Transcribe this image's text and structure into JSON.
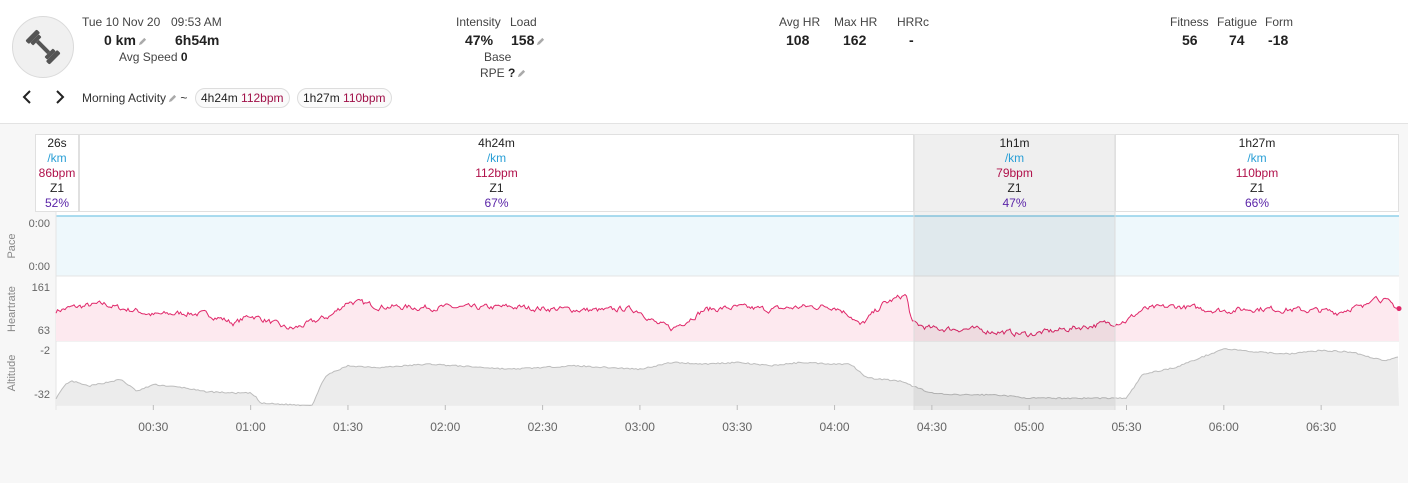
{
  "activity": {
    "date": "Tue 10 Nov 20",
    "time": "09:53 AM",
    "distance": "0 km",
    "duration": "6h54m",
    "avg_speed_label": "Avg Speed",
    "avg_speed": "0",
    "name": "Morning Activity",
    "separator": "~",
    "icon": "dumbbell-icon"
  },
  "metrics": {
    "intensity_label": "Intensity",
    "intensity": "47%",
    "load_label": "Load",
    "load": "158",
    "base_label": "Base",
    "rpe_label": "RPE",
    "rpe": "?",
    "avg_hr_label": "Avg HR",
    "avg_hr": "108",
    "max_hr_label": "Max HR",
    "max_hr": "162",
    "hrrc_label": "HRRc",
    "hrrc": "-",
    "fitness_label": "Fitness",
    "fitness": "56",
    "fatigue_label": "Fatigue",
    "fatigue": "74",
    "form_label": "Form",
    "form": "-18"
  },
  "intervals_pills": [
    {
      "duration": "4h24m",
      "bpm": "112bpm"
    },
    {
      "duration": "1h27m",
      "bpm": "110bpm"
    }
  ],
  "intervals": [
    {
      "duration": "26s",
      "pace": "/km",
      "hr": "86bpm",
      "zone": "Z1",
      "pct": "52%"
    },
    {
      "duration": "4h24m",
      "pace": "/km",
      "hr": "112bpm",
      "zone": "Z1",
      "pct": "67%"
    },
    {
      "duration": "1h1m",
      "pace": "/km",
      "hr": "79bpm",
      "zone": "Z1",
      "pct": "47%"
    },
    {
      "duration": "1h27m",
      "pace": "/km",
      "hr": "110bpm",
      "zone": "Z1",
      "pct": "66%"
    }
  ],
  "colors": {
    "pace": "#8fd0ea",
    "heartrate": "#e0286a",
    "altitude": "#bdbdbd",
    "pct": "#5a24a8"
  },
  "chart_data": {
    "type": "line",
    "x_tick_labels": [
      "00:30",
      "01:00",
      "01:30",
      "02:00",
      "02:30",
      "03:00",
      "03:30",
      "04:00",
      "04:30",
      "05:00",
      "05:30",
      "06:00",
      "06:30"
    ],
    "x_tick_minutes": [
      30,
      60,
      90,
      120,
      150,
      180,
      210,
      240,
      270,
      300,
      330,
      360,
      390
    ],
    "x_range_minutes": [
      0,
      414
    ],
    "panels": [
      {
        "name": "Pace",
        "y_tick_labels": [
          "0:00",
          "0:00"
        ]
      },
      {
        "name": "Heartrate",
        "ylim": [
          63,
          161
        ],
        "y_tick_labels": [
          "161",
          "63"
        ],
        "keyframes_minutes": [
          0,
          5,
          10,
          15,
          20,
          25,
          30,
          40,
          48,
          55,
          60,
          65,
          70,
          73,
          78,
          85,
          90,
          100,
          110,
          120,
          130,
          140,
          150,
          160,
          170,
          175,
          180,
          185,
          190,
          200,
          210,
          220,
          230,
          240,
          245,
          248,
          255,
          262,
          264,
          270,
          280,
          300,
          330,
          335,
          345,
          360,
          370,
          380,
          390,
          395,
          400,
          403,
          406,
          414
        ],
        "keyframes_bpm": [
          118,
          124,
          127,
          130,
          122,
          118,
          110,
          114,
          110,
          95,
          110,
          100,
          88,
          85,
          95,
          110,
          135,
          126,
          124,
          124,
          123,
          125,
          122,
          120,
          118,
          122,
          118,
          95,
          85,
          120,
          124,
          120,
          125,
          126,
          110,
          90,
          130,
          147,
          95,
          85,
          85,
          75,
          100,
          120,
          126,
          118,
          122,
          120,
          118,
          115,
          125,
          122,
          147,
          122
        ]
      },
      {
        "name": "Altitude",
        "ylim": [
          -36,
          -2
        ],
        "y_tick_labels": [
          "-2",
          "-32"
        ],
        "keyframes_minutes": [
          0,
          3,
          5,
          10,
          20,
          25,
          30,
          40,
          45,
          55,
          60,
          62,
          63,
          75,
          79,
          83,
          90,
          100,
          115,
          140,
          160,
          180,
          190,
          200,
          210,
          220,
          230,
          240,
          245,
          250,
          260,
          270,
          275,
          290,
          300,
          330,
          335,
          345,
          360,
          370,
          380,
          390,
          400,
          405,
          410,
          414
        ],
        "keyframes_m": [
          -32,
          -24,
          -22,
          -25,
          -21,
          -28,
          -24,
          -26,
          -28,
          -29,
          -29,
          -32,
          -35,
          -36,
          -36,
          -19,
          -13,
          -14,
          -12,
          -15,
          -13,
          -15,
          -11,
          -12,
          -11,
          -13,
          -11,
          -12,
          -12,
          -20,
          -22,
          -29,
          -30,
          -30,
          -32,
          -32,
          -18,
          -14,
          -3,
          -5,
          -6,
          -4,
          -5,
          -8,
          -10,
          -8
        ]
      }
    ]
  }
}
